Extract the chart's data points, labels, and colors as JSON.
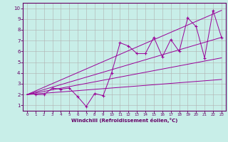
{
  "xlabel": "Windchill (Refroidissement éolien,°C)",
  "bg_color": "#c8eee8",
  "grid_color": "#b0b0b0",
  "line_color": "#990099",
  "xlim": [
    -0.5,
    23.5
  ],
  "ylim": [
    0.5,
    10.5
  ],
  "xticks": [
    0,
    1,
    2,
    3,
    4,
    5,
    6,
    7,
    8,
    9,
    10,
    11,
    12,
    13,
    14,
    15,
    16,
    17,
    18,
    19,
    20,
    21,
    22,
    23
  ],
  "yticks": [
    1,
    2,
    3,
    4,
    5,
    6,
    7,
    8,
    9,
    10
  ],
  "scatter_x": [
    1,
    2,
    3,
    4,
    5,
    6,
    7,
    8,
    9,
    10,
    11,
    12,
    13,
    14,
    15,
    16,
    17,
    18,
    19,
    20,
    21,
    22,
    23
  ],
  "scatter_y": [
    2,
    2,
    2.6,
    2.5,
    2.6,
    1.8,
    0.9,
    2.1,
    1.9,
    4.0,
    6.8,
    6.5,
    5.8,
    5.8,
    7.3,
    5.5,
    7.1,
    6.0,
    9.1,
    8.3,
    5.4,
    9.8,
    7.3
  ],
  "line1_x": [
    0,
    23
  ],
  "line1_y": [
    2.0,
    9.8
  ],
  "line2_x": [
    0,
    23
  ],
  "line2_y": [
    2.0,
    7.3
  ],
  "line3_x": [
    0,
    23
  ],
  "line3_y": [
    2.0,
    5.4
  ],
  "line4_x": [
    0,
    23
  ],
  "line4_y": [
    2.0,
    3.4
  ]
}
